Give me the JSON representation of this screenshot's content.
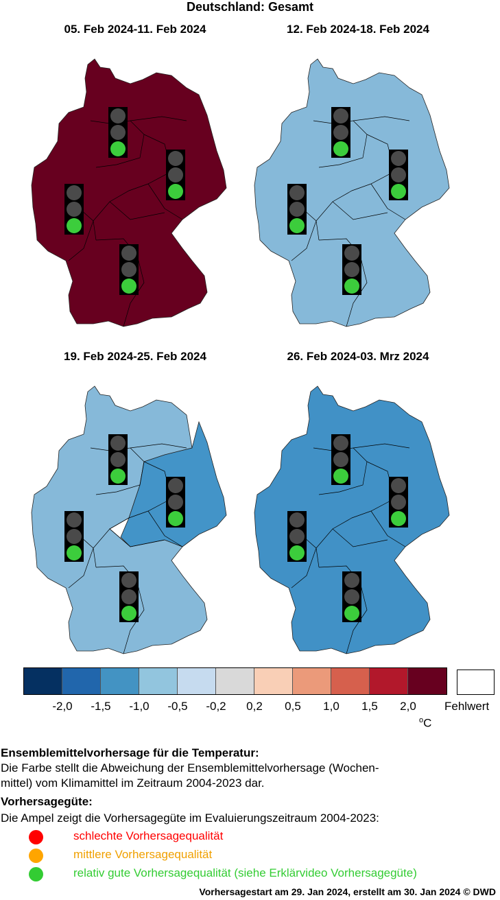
{
  "title": "Deutschland: Gesamt",
  "panels": [
    {
      "period": "05. Feb 2024-11. Feb 2024",
      "fill": "#67001f"
    },
    {
      "period": "12. Feb 2024-18. Feb 2024",
      "fill": "#86b9d9"
    },
    {
      "period": "19. Feb 2024-25. Feb 2024",
      "fill_west": "#86b9d9",
      "fill_east": "#4394c8"
    },
    {
      "period": "26. Feb 2024-03. Mrz 2024",
      "fill": "#4191c6"
    }
  ],
  "traffic_light_state": "green",
  "colorbar": {
    "colors": [
      "#053061",
      "#2166ac",
      "#4393c3",
      "#92c5de",
      "#c6dbef",
      "#d9d9d9",
      "#f9cfb6",
      "#eb9a7a",
      "#d6604d",
      "#b2182b",
      "#67001f"
    ],
    "ticks": [
      "-2,0",
      "-1,5",
      "-1,0",
      "-0,5",
      "-0,2",
      "0,2",
      "0,5",
      "1,0",
      "1,5",
      "2,0"
    ],
    "unit_prefix": "o",
    "unit": "C",
    "missing_label": "Fehlwert"
  },
  "description": {
    "heading1": "Ensemblemittelvorhersage für die Temperatur:",
    "line1": "Die Farbe stellt die Abweichung der Ensemblemittelvorhersage (Wochen-",
    "line2": "mittel) vom Klimamittel im Zeitraum 2004-2023 dar.",
    "heading2": "Vorhersagegüte:",
    "line3": "Die Ampel zeigt die Vorhersagegüte im Evaluierungszeitraum 2004-2023:"
  },
  "quality_legend": [
    {
      "label": "schlechte Vorhersagequalität",
      "color": "#ff0000",
      "text_color": "#ff0000"
    },
    {
      "label": "mittlere Vorhersagequalität",
      "color": "#ffa500",
      "text_color": "#f0a000"
    },
    {
      "label": "relativ gute Vorhersagequalität (siehe Erklärvideo Vorhersagegüte)",
      "color": "#33cc33",
      "text_color": "#33cc33"
    }
  ],
  "footer": "Vorhersagestart am 29. Jan 2024, erstellt am 30. Jan 2024 © DWD"
}
